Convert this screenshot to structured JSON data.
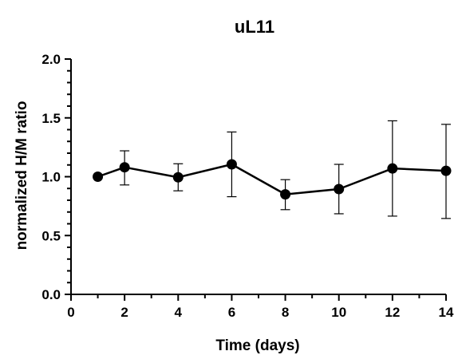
{
  "chart_data": {
    "type": "line",
    "title": "uL11",
    "xlabel": "Time (days)",
    "ylabel": "normalized H/M ratio",
    "xlim": [
      0,
      14
    ],
    "ylim": [
      0,
      2.0
    ],
    "x_ticks": [
      0,
      2,
      4,
      6,
      8,
      10,
      12,
      14
    ],
    "x_tick_labels": [
      "0",
      "2",
      "4",
      "6",
      "8",
      "10",
      "12",
      "14"
    ],
    "y_ticks": [
      0,
      0.5,
      1.0,
      1.5,
      2.0
    ],
    "y_tick_labels": [
      "0.0",
      "0.5",
      "1.0",
      "1.5",
      "2.0"
    ],
    "grid": false,
    "series": [
      {
        "x": [
          1,
          2,
          4,
          6,
          8,
          10,
          12,
          14
        ],
        "y": [
          1.0,
          1.08,
          0.995,
          1.105,
          0.85,
          0.895,
          1.07,
          1.05
        ],
        "error_low": [
          1.0,
          0.93,
          0.88,
          0.83,
          0.72,
          0.685,
          0.665,
          0.645
        ],
        "error_high": [
          1.0,
          1.22,
          1.11,
          1.38,
          0.975,
          1.105,
          1.475,
          1.445
        ],
        "color": "#000000"
      }
    ]
  }
}
